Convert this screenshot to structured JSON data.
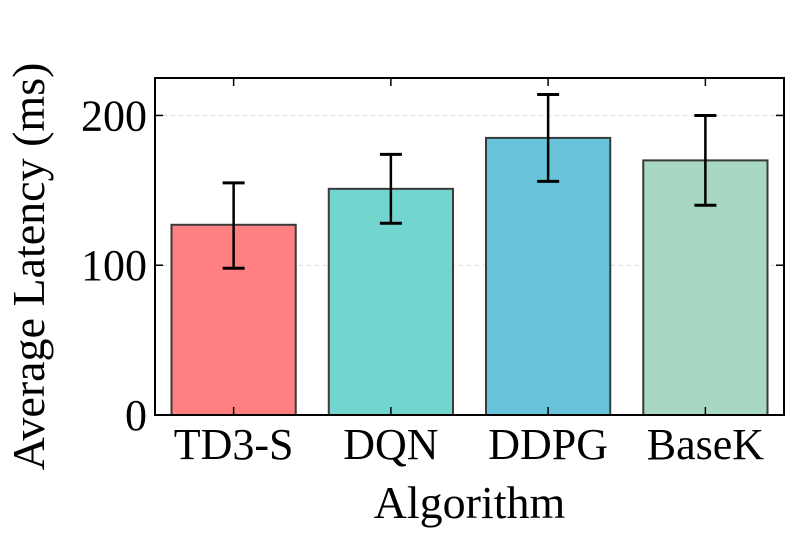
{
  "chart_data": {
    "type": "bar",
    "title": "",
    "xlabel": "Algorithm",
    "ylabel": "Average Latency (ms)",
    "categories": [
      "TD3-S",
      "DQN",
      "DDPG",
      "BaseK"
    ],
    "values": [
      127,
      151,
      185,
      170
    ],
    "error_low": [
      98,
      128,
      156,
      140
    ],
    "error_high": [
      155,
      174,
      214,
      200
    ],
    "ylim": [
      0,
      225
    ],
    "yticks": [
      0,
      100,
      200
    ],
    "ytick_labels": [
      "0",
      "100",
      "200"
    ],
    "grid": "horizontal dashed",
    "legend": "none",
    "colors": [
      "#ff8080",
      "#72d6cf",
      "#67c3da",
      "#a8d8c2"
    ],
    "edge_color": "#3a3a3a",
    "error_bar_color": "#000000"
  }
}
